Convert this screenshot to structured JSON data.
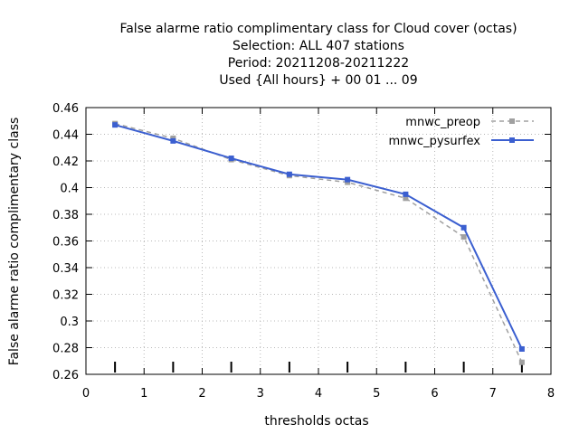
{
  "chart_data": {
    "type": "line",
    "title_lines": [
      "False alarme ratio complimentary class  for Cloud cover (octas)",
      "Selection: ALL    407 stations",
      "Period: 20211208-20211222",
      "Used {All hours} + 00 01 ... 09"
    ],
    "xlabel": "thresholds octas",
    "ylabel": "False alarme ratio complimentary class",
    "xlim": [
      0,
      8
    ],
    "ylim": [
      0.26,
      0.46
    ],
    "x_ticks": [
      0,
      1,
      2,
      3,
      4,
      5,
      6,
      7,
      8
    ],
    "y_ticks": [
      0.26,
      0.28,
      0.3,
      0.32,
      0.34,
      0.36,
      0.38,
      0.4,
      0.42,
      0.44,
      0.46
    ],
    "grid": true,
    "legend_position": "top-right",
    "x": [
      0.5,
      1.5,
      2.5,
      3.5,
      4.5,
      5.5,
      6.5,
      7.5
    ],
    "series": [
      {
        "name": "mnwc_preop",
        "color": "#a0a0a0",
        "dashed": true,
        "values": [
          0.448,
          0.437,
          0.421,
          0.409,
          0.404,
          0.392,
          0.363,
          0.269
        ]
      },
      {
        "name": "mnwc_pysurfex",
        "color": "#3b5fd0",
        "dashed": false,
        "values": [
          0.447,
          0.435,
          0.422,
          0.41,
          0.406,
          0.395,
          0.37,
          0.279
        ]
      }
    ],
    "bottom_marks_x": [
      0.5,
      1.5,
      2.5,
      3.5,
      4.5,
      5.5,
      6.5,
      7.5
    ]
  }
}
